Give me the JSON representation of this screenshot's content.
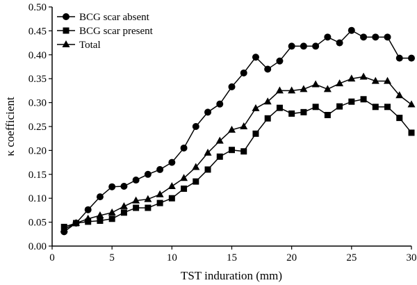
{
  "chart_data": {
    "type": "line",
    "title": "",
    "xlabel": "TST induration (mm)",
    "ylabel": "κ coefficient",
    "xlim": [
      0,
      30
    ],
    "ylim": [
      0,
      0.5
    ],
    "xticks": [
      "0",
      "5",
      "10",
      "15",
      "20",
      "25",
      "30"
    ],
    "yticks": [
      "0.00",
      "0.05",
      "0.10",
      "0.15",
      "0.20",
      "0.25",
      "0.30",
      "0.35",
      "0.40",
      "0.45",
      "0.50"
    ],
    "grid": false,
    "legend_position": "top-left",
    "x": [
      1,
      2,
      3,
      4,
      5,
      6,
      7,
      8,
      9,
      10,
      11,
      12,
      13,
      14,
      15,
      16,
      17,
      18,
      19,
      20,
      21,
      22,
      23,
      24,
      25,
      26,
      27,
      28,
      29,
      30
    ],
    "series": [
      {
        "name": "BCG scar absent",
        "marker": "circle",
        "values": [
          0.03,
          0.048,
          0.076,
          0.103,
          0.124,
          0.125,
          0.138,
          0.15,
          0.16,
          0.175,
          0.205,
          0.25,
          0.28,
          0.297,
          0.333,
          0.362,
          0.395,
          0.37,
          0.387,
          0.418,
          0.418,
          0.418,
          0.437,
          0.425,
          0.451,
          0.437,
          0.437,
          0.437,
          0.393,
          0.393
        ]
      },
      {
        "name": "BCG scar present",
        "marker": "square",
        "values": [
          0.04,
          0.048,
          0.051,
          0.053,
          0.057,
          0.07,
          0.08,
          0.08,
          0.09,
          0.1,
          0.12,
          0.135,
          0.16,
          0.187,
          0.201,
          0.198,
          0.235,
          0.267,
          0.289,
          0.277,
          0.28,
          0.291,
          0.274,
          0.292,
          0.302,
          0.307,
          0.291,
          0.291,
          0.268,
          0.237
        ]
      },
      {
        "name": "Total",
        "marker": "triangle",
        "values": [
          0.035,
          0.048,
          0.057,
          0.064,
          0.07,
          0.083,
          0.095,
          0.098,
          0.108,
          0.125,
          0.142,
          0.165,
          0.195,
          0.22,
          0.243,
          0.25,
          0.288,
          0.302,
          0.325,
          0.325,
          0.328,
          0.338,
          0.328,
          0.34,
          0.35,
          0.354,
          0.345,
          0.345,
          0.315,
          0.296
        ]
      }
    ]
  }
}
